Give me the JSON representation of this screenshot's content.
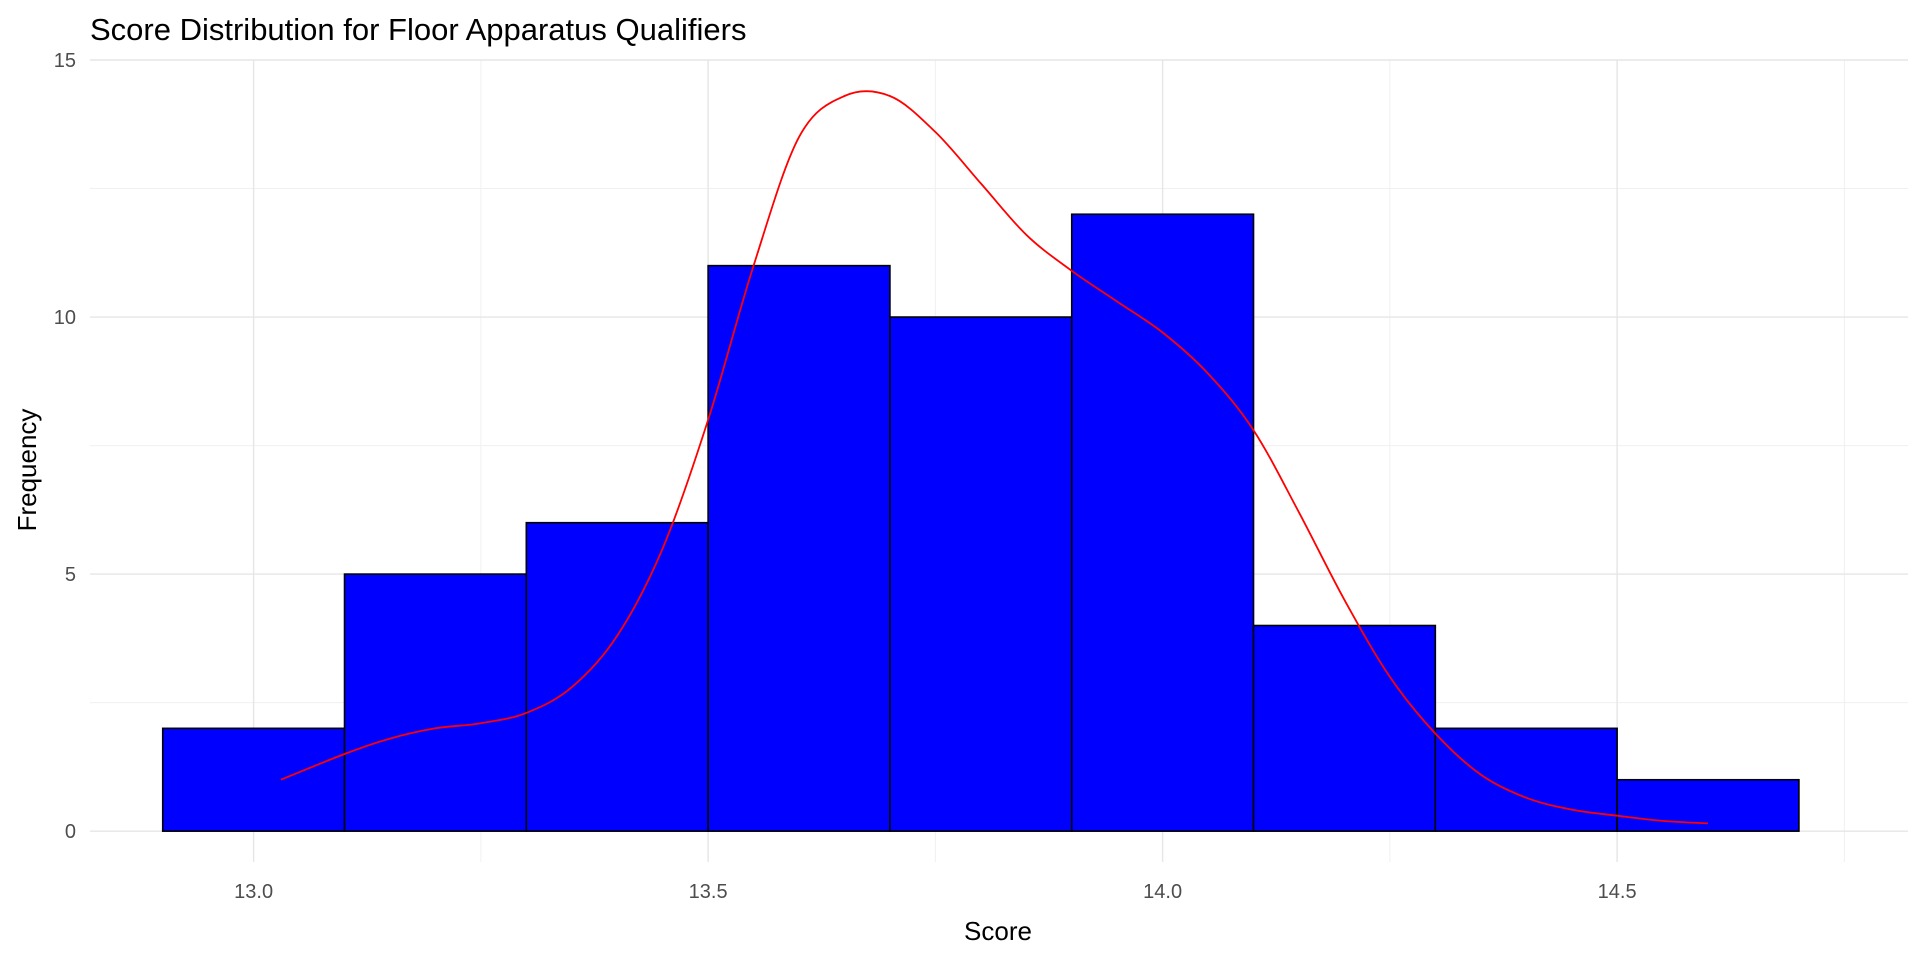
{
  "chart_data": {
    "type": "bar",
    "title": "Score Distribution for Floor Apparatus Qualifiers",
    "xlabel": "Score",
    "ylabel": "Frequency",
    "xlim": [
      12.82,
      14.82
    ],
    "ylim": [
      -0.6,
      15
    ],
    "xticks": [
      13.0,
      13.5,
      14.0,
      14.5
    ],
    "xtick_labels": [
      "13.0",
      "13.5",
      "14.0",
      "14.5"
    ],
    "xminor": [
      13.25,
      13.75,
      14.25,
      14.75
    ],
    "yticks": [
      0,
      5,
      10,
      15
    ],
    "ytick_labels": [
      "0",
      "5",
      "10",
      "15"
    ],
    "yminor": [
      2.5,
      7.5,
      12.5
    ],
    "grid": true,
    "legend": "none",
    "bins": [
      {
        "x0": 12.9,
        "x1": 13.1,
        "count": 2
      },
      {
        "x0": 13.1,
        "x1": 13.3,
        "count": 5
      },
      {
        "x0": 13.3,
        "x1": 13.5,
        "count": 6
      },
      {
        "x0": 13.5,
        "x1": 13.7,
        "count": 11
      },
      {
        "x0": 13.7,
        "x1": 13.9,
        "count": 10
      },
      {
        "x0": 13.9,
        "x1": 14.1,
        "count": 12
      },
      {
        "x0": 14.1,
        "x1": 14.3,
        "count": 4
      },
      {
        "x0": 14.3,
        "x1": 14.5,
        "count": 2
      },
      {
        "x0": 14.5,
        "x1": 14.7,
        "count": 1
      }
    ],
    "density_curve": {
      "x": [
        13.03,
        13.1,
        13.15,
        13.2,
        13.25,
        13.3,
        13.35,
        13.4,
        13.45,
        13.5,
        13.55,
        13.6,
        13.65,
        13.7,
        13.75,
        13.8,
        13.85,
        13.9,
        13.95,
        14.0,
        14.05,
        14.1,
        14.15,
        14.2,
        14.25,
        14.3,
        14.35,
        14.4,
        14.45,
        14.5,
        14.55,
        14.6
      ],
      "y": [
        1.0,
        1.5,
        1.8,
        2.0,
        2.1,
        2.3,
        2.8,
        3.8,
        5.5,
        8.0,
        11.0,
        13.5,
        14.3,
        14.3,
        13.6,
        12.6,
        11.6,
        10.9,
        10.3,
        9.7,
        8.9,
        7.8,
        6.2,
        4.5,
        3.0,
        1.9,
        1.1,
        0.65,
        0.42,
        0.3,
        0.2,
        0.15
      ]
    },
    "colors": {
      "bar_fill": "#0000ff",
      "bar_stroke": "#000000",
      "curve": "#ff0000"
    }
  }
}
